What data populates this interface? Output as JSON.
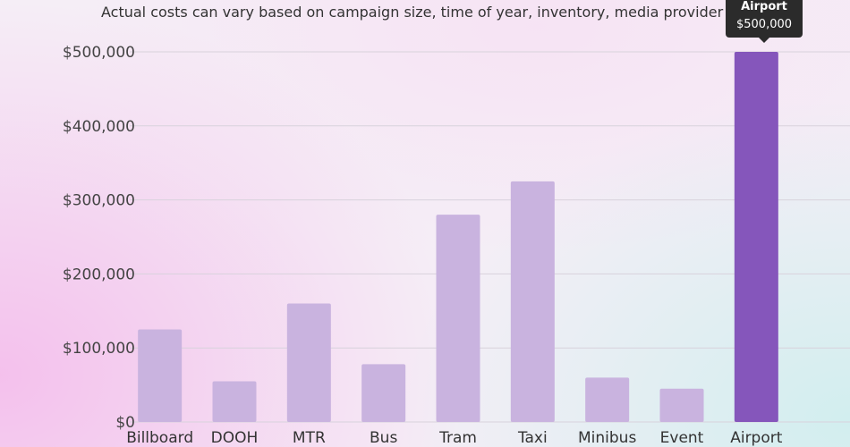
{
  "chart_data": {
    "type": "bar",
    "title": "",
    "subtitle": "Actual costs can vary based on campaign size, time of year, inventory, media provider e",
    "categories": [
      "Billboard",
      "DOOH",
      "MTR",
      "Bus",
      "Tram",
      "Taxi",
      "Minibus",
      "Event",
      "Airport"
    ],
    "values": [
      125000,
      55000,
      160000,
      78000,
      280000,
      325000,
      60000,
      45000,
      500000
    ],
    "ylim": [
      0,
      500000
    ],
    "yticks": [
      0,
      100000,
      200000,
      300000,
      400000,
      500000
    ],
    "ytick_labels": [
      "$0",
      "$100,000",
      "$200,000",
      "$300,000",
      "$400,000",
      "$500,000"
    ],
    "xlabel": "",
    "ylabel": "",
    "grid": true,
    "highlighted_index": 8,
    "colors": {
      "bar": "#c9b3df",
      "highlight": "#8556bb",
      "grid": "#d8d2dc",
      "axis_text": "#444444"
    },
    "tooltip": {
      "name": "Airport",
      "value": "$500,000"
    }
  }
}
